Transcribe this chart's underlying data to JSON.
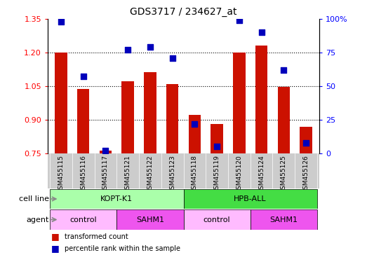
{
  "title": "GDS3717 / 234627_at",
  "samples": [
    "GSM455115",
    "GSM455116",
    "GSM455117",
    "GSM455121",
    "GSM455122",
    "GSM455123",
    "GSM455118",
    "GSM455119",
    "GSM455120",
    "GSM455124",
    "GSM455125",
    "GSM455126"
  ],
  "red_values": [
    1.201,
    1.038,
    0.763,
    1.073,
    1.113,
    1.06,
    0.92,
    0.882,
    1.2,
    1.23,
    1.046,
    0.868
  ],
  "blue_values": [
    98,
    57,
    2,
    77,
    79,
    71,
    22,
    5,
    99,
    90,
    62,
    8
  ],
  "ylim_left": [
    0.75,
    1.35
  ],
  "ylim_right": [
    0,
    100
  ],
  "yticks_left": [
    0.75,
    0.9,
    1.05,
    1.2,
    1.35
  ],
  "yticks_right": [
    0,
    25,
    50,
    75,
    100
  ],
  "ytick_labels_right": [
    "0",
    "25",
    "50",
    "75",
    "100%"
  ],
  "bar_color": "#cc1100",
  "dot_color": "#0000bb",
  "background_color": "#ffffff",
  "tick_bg_color": "#cccccc",
  "cell_line_groups": [
    {
      "label": "KOPT-K1",
      "start": 0,
      "end": 6,
      "color": "#aaffaa"
    },
    {
      "label": "HPB-ALL",
      "start": 6,
      "end": 12,
      "color": "#44dd44"
    }
  ],
  "agent_groups": [
    {
      "label": "control",
      "start": 0,
      "end": 3,
      "color": "#ffbbff"
    },
    {
      "label": "SAHM1",
      "start": 3,
      "end": 6,
      "color": "#ee55ee"
    },
    {
      "label": "control",
      "start": 6,
      "end": 9,
      "color": "#ffbbff"
    },
    {
      "label": "SAHM1",
      "start": 9,
      "end": 12,
      "color": "#ee55ee"
    }
  ],
  "legend_red": "transformed count",
  "legend_blue": "percentile rank within the sample",
  "xlabel_cell_line": "cell line",
  "xlabel_agent": "agent",
  "bar_width": 0.55,
  "dot_size": 28,
  "dot_marker": "s"
}
